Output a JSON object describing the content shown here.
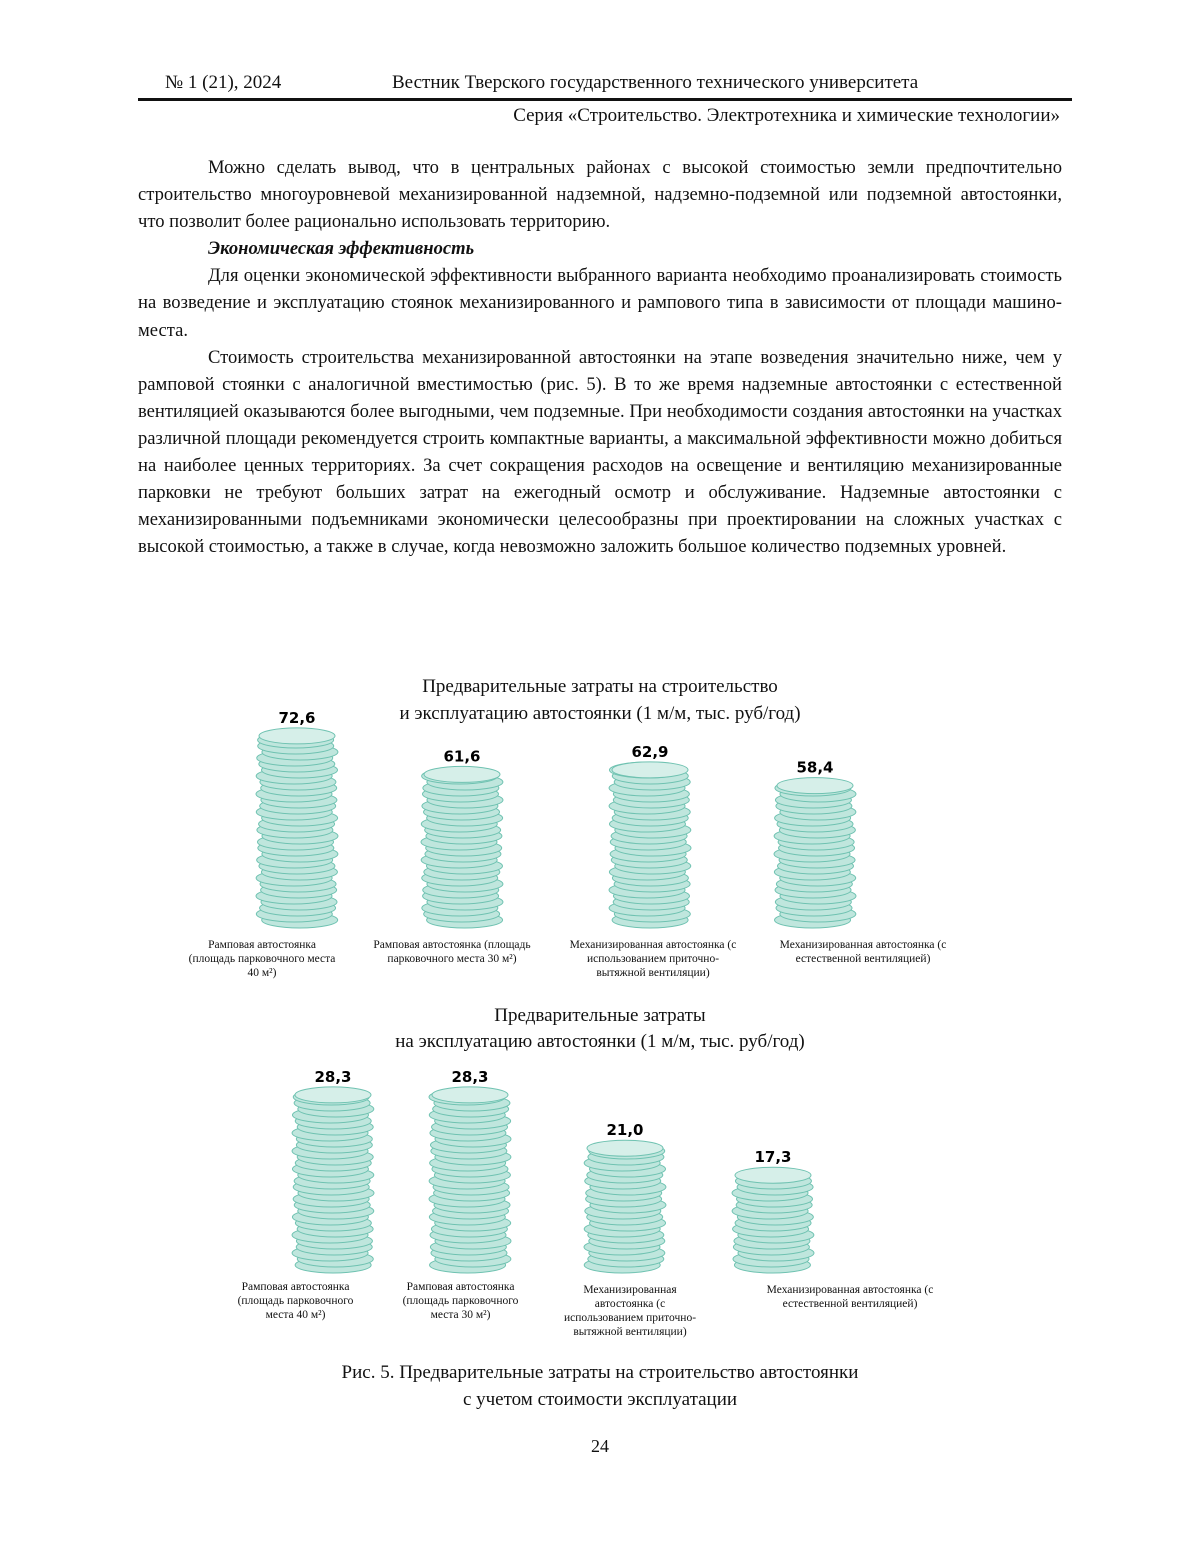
{
  "header": {
    "issue": "№ 1 (21), 2024",
    "journal": "Вестник Тверского государственного технического университета",
    "series": "Серия «Строительство. Электротехника и химические технологии»"
  },
  "body": {
    "p1": "Можно сделать вывод, что в центральных районах с высокой стоимостью земли предпочтительно строительство многоуровневой механизированной надземной, надземно-подземной или подземной автостоянки, что позволит более рационально использовать территорию.",
    "heading": "Экономическая эффективность",
    "p2": "Для оценки экономической эффективности выбранного варианта необходимо проанализировать стоимость на возведение и эксплуатацию стоянок механизированного и рампового типа в зависимости от площади машино-места.",
    "p3": "Стоимость строительства механизированной автостоянки на этапе возведения значительно ниже, чем у рамповой стоянки с аналогичной вместимостью (рис. 5). В то же время надземные автостоянки с естественной вентиляцией оказываются более выгодными, чем подземные. При необходимости создания автостоянки на участках различной площади рекомендуется строить компактные варианты, а максимальной эффективности можно добиться на наиболее ценных территориях. За счет сокращения расходов на освещение и вентиляцию механизированные парковки не требуют больших затрат на ежегодный осмотр и обслуживание. Надземные автостоянки с механизированными подъемниками экономически целесообразны при проектировании на сложных участках с высокой стоимостью, а также в случае, когда невозможно заложить большое количество подземных уровней."
  },
  "chart_data": [
    {
      "type": "bar",
      "title_line1": "Предварительные затраты на строительство",
      "title_line2": "и эксплуатацию автостоянки (1 м/м, тыс. руб/год)",
      "categories": [
        "Рамповая автостоянка (площадь парковочного места 40 м²)",
        "Рамповая автостоянка (площадь парковочного места 30 м²)",
        "Механизированная автостоянка (с использованием приточно-вытяжной вентиляции)",
        "Механизированная автостоянка (с естественной вентиляцией)"
      ],
      "values": [
        72.6,
        61.6,
        62.9,
        58.4
      ],
      "value_labels": [
        "72,6",
        "61,6",
        "62,9",
        "58,4"
      ],
      "color": "#bfe6dd"
    },
    {
      "type": "bar",
      "title_line1": "Предварительные затраты",
      "title_line2": "на эксплуатацию автостоянки (1 м/м, тыс. руб/год)",
      "categories": [
        "Рамповая автостоянка (площадь парковочного места 40 м²)",
        "Рамповая автостоянка (площадь парковочного места 30 м²)",
        "Механизированная автостоянка (с использованием приточно-вытяжной вентиляции)",
        "Механизированная автостоянка (с естественной вентиляцией)"
      ],
      "values": [
        28.3,
        28.3,
        21.0,
        17.3
      ],
      "value_labels": [
        "28,3",
        "28,3",
        "21,0",
        "17,3"
      ],
      "color": "#bfe6dd"
    }
  ],
  "caption": {
    "line1": "Рис. 5. Предварительные затраты на строительство автостоянки",
    "line2": "с учетом стоимости эксплуатации"
  },
  "page_number": "24"
}
